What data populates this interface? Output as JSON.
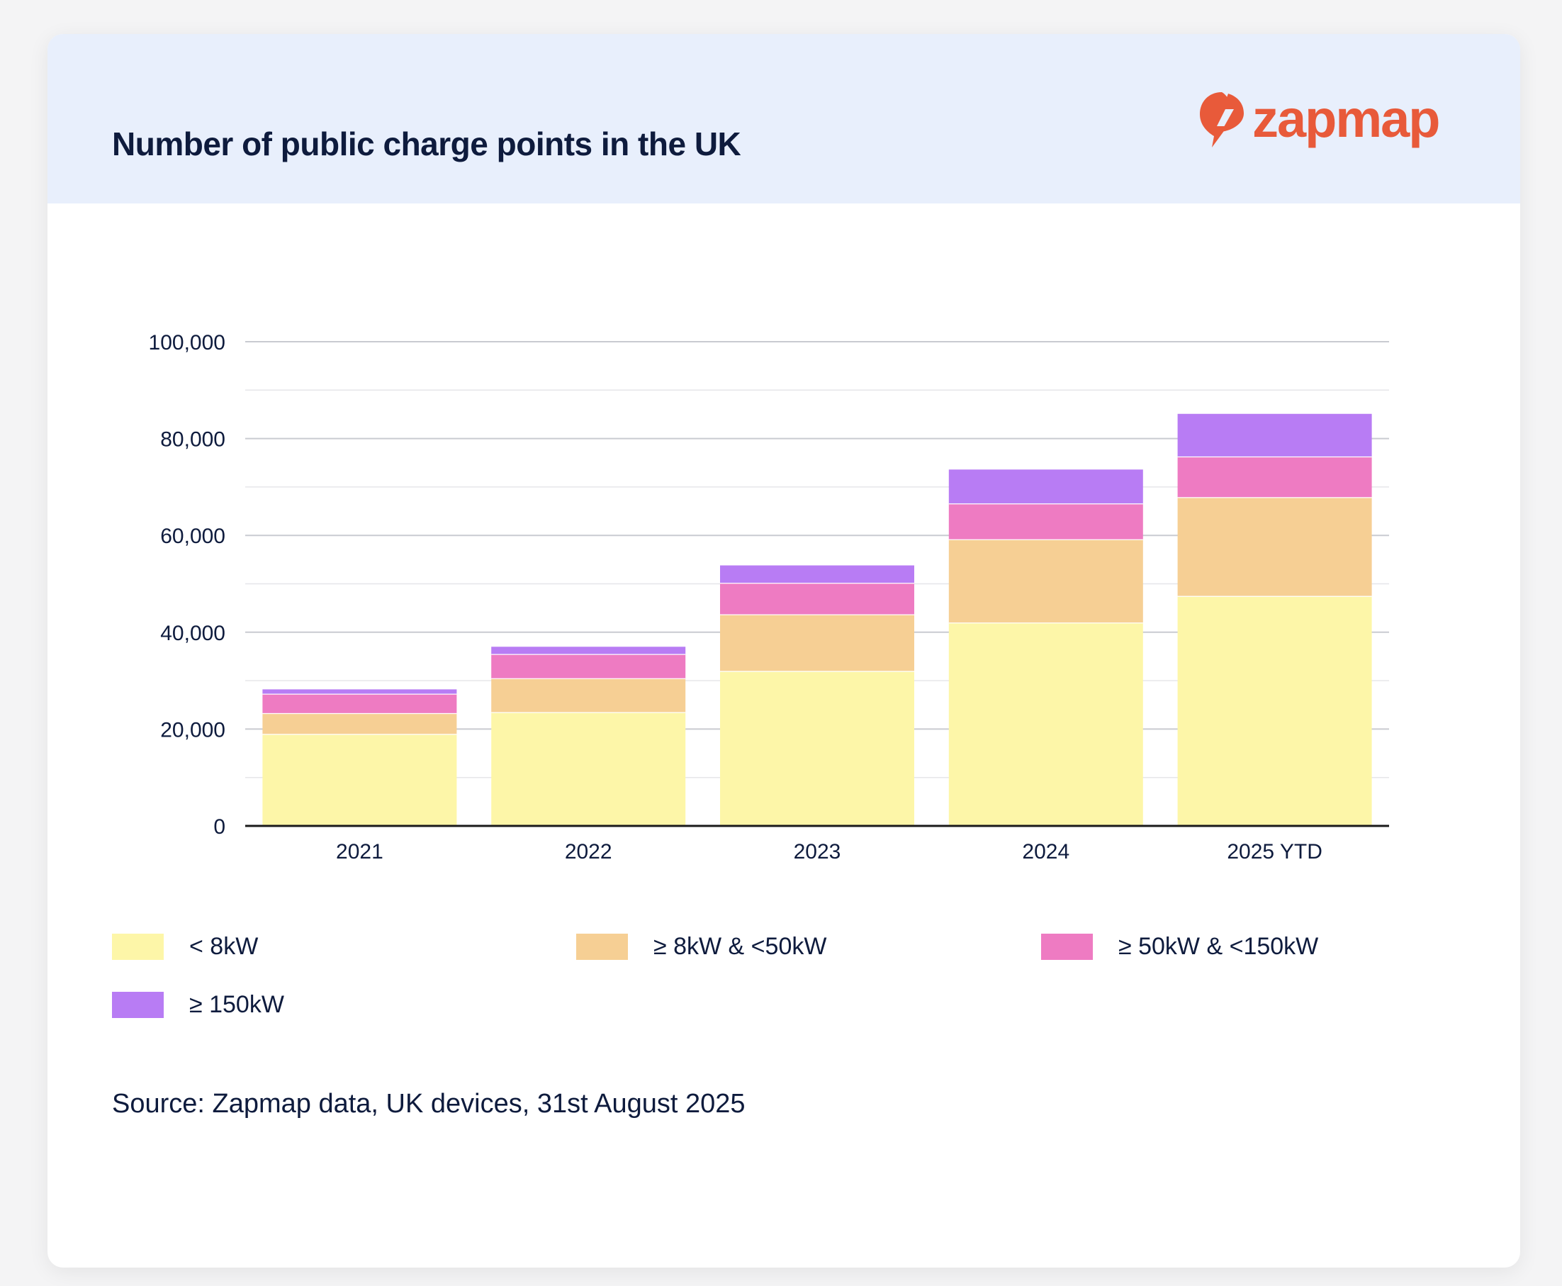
{
  "title": "Number of public charge points in the UK",
  "logo": {
    "text": "zapmap",
    "icon": "bolt-icon",
    "color": "#e85a3a"
  },
  "source": "Source: Zapmap data, UK devices, 31st August 2025",
  "chart_data": {
    "type": "bar",
    "stacked": true,
    "categories": [
      "2021",
      "2022",
      "2023",
      "2024",
      "2025 YTD"
    ],
    "series": [
      {
        "name": "< 8kW",
        "color": "#fdf6a8",
        "values": [
          19000,
          23500,
          32000,
          42000,
          47500
        ]
      },
      {
        "name": "≥ 8kW & <50kW",
        "color": "#f6cf94",
        "values": [
          4300,
          7000,
          11700,
          17200,
          20400
        ]
      },
      {
        "name": "≥ 50kW & <150kW",
        "color": "#ee7bc2",
        "values": [
          4000,
          5000,
          6500,
          7400,
          8400
        ]
      },
      {
        "name": "≥ 150kW",
        "color": "#b87cf4",
        "values": [
          900,
          1500,
          3600,
          7000,
          8800
        ]
      }
    ],
    "ylim": [
      0,
      100000
    ],
    "yticks": [
      "0",
      "20,000",
      "40,000",
      "60,000",
      "80,000",
      "100,000"
    ],
    "grid": true,
    "legend_position": "bottom"
  }
}
